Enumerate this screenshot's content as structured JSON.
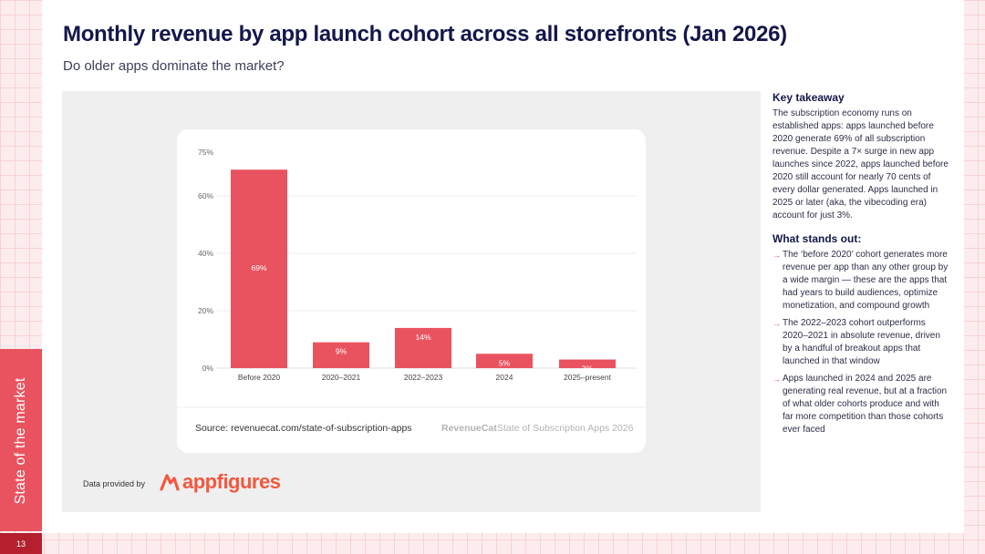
{
  "slide": {
    "title": "Monthly revenue by app launch cohort across all storefronts (Jan 2026)",
    "subtitle": "Do older apps dominate the market?",
    "side_label": "State of the market",
    "page_number": "13"
  },
  "chart_data": {
    "type": "bar",
    "categories": [
      "Before 2020",
      "2020–2021",
      "2022–2023",
      "2024",
      "2025–present"
    ],
    "values": [
      69,
      9,
      14,
      5,
      3
    ],
    "value_labels": [
      "69%",
      "9%",
      "14%",
      "5%",
      "3%"
    ],
    "y_ticks": [
      0,
      20,
      40,
      60,
      75
    ],
    "y_tick_labels": [
      "0%",
      "20%",
      "40%",
      "60%",
      "75%"
    ],
    "ylim": [
      0,
      75
    ],
    "grid": true,
    "bar_color": "#e8535f",
    "title": "",
    "xlabel": "",
    "ylabel": ""
  },
  "chart_footer": {
    "source": "Source: revenuecat.com/state-of-subscription-apps",
    "brand": "RevenueCat",
    "report": "State of Subscription Apps 2026"
  },
  "credit": {
    "label": "Data provided by",
    "logo_text": "appfigures"
  },
  "takeaway": {
    "heading": "Key takeaway",
    "body": "The subscription economy runs on established apps: apps launched before 2020 generate 69% of all subscription revenue. Despite a 7× surge in new app launches since 2022, apps launched before 2020 still account for nearly 70 cents of every dollar generated. Apps launched in 2025 or later (aka, the vibecoding era) account for just 3%."
  },
  "stands_out": {
    "heading": "What stands out:",
    "bullet_glyph": "→",
    "items": [
      "The ‘before 2020’ cohort generates more revenue per app than any other group by a wide margin — these are the apps that had years to build audiences, optimize monetization, and compound growth",
      "The 2022–2023 cohort outperforms 2020–2021 in absolute revenue, driven by a handful of breakout apps that launched in that window",
      "Apps launched in 2024 and 2025 are generating real revenue, but at a fraction of what older cohorts produce and with far more competition than those cohorts ever faced"
    ]
  },
  "colors": {
    "accent": "#e8535f",
    "navy": "#14174a",
    "appfigures_orange": "#f2593e"
  }
}
